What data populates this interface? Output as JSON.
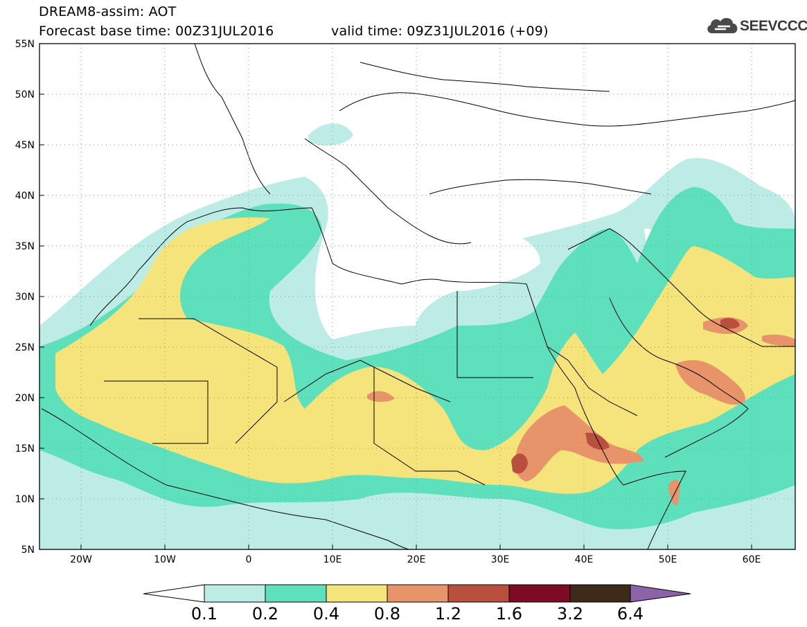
{
  "title": {
    "line1": "DREAM8-assim: AOT",
    "line2": "Forecast base time: 00Z31JUL2016",
    "line3": "valid time: 09Z31JUL2016 (+09)"
  },
  "logo": {
    "text": "SEEVCCC",
    "icon": "cloud-icon"
  },
  "map": {
    "lon_range": [
      -25,
      65
    ],
    "lat_range": [
      5,
      55
    ],
    "grid": "dotted",
    "y_tick_labels": [
      "55N",
      "50N",
      "45N",
      "40N",
      "35N",
      "30N",
      "25N",
      "20N",
      "15N",
      "10N",
      "5N"
    ],
    "x_tick_labels": [
      "20W",
      "10W",
      "0",
      "10E",
      "20E",
      "30E",
      "40E",
      "50E",
      "60E"
    ]
  },
  "colorbar": {
    "labels": [
      "0.1",
      "0.2",
      "0.4",
      "0.8",
      "1.2",
      "1.6",
      "3.2",
      "6.4"
    ],
    "colors": [
      "#ffffff",
      "#bdece6",
      "#5ee0bc",
      "#f5e47b",
      "#e8946a",
      "#b9503f",
      "#7d0b26",
      "#3e2a1a",
      "#8d63a8"
    ]
  }
}
